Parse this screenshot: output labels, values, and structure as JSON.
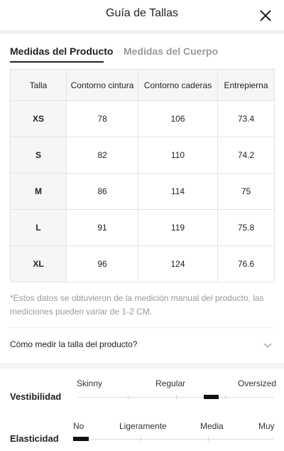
{
  "header": {
    "title": "Guía de Tallas"
  },
  "tabs": [
    "Medidas del Producto",
    "Medidas del Cuerpo"
  ],
  "table": {
    "header": [
      "Talla",
      "Contorno cintura",
      "Contorno caderas",
      "Entrepierna"
    ],
    "rows": [
      [
        "XS",
        "78",
        "106",
        "73.4"
      ],
      [
        "S",
        "82",
        "110",
        "74.2"
      ],
      [
        "M",
        "86",
        "114",
        "75"
      ],
      [
        "L",
        "91",
        "119",
        "75.8"
      ],
      [
        "XL",
        "96",
        "124",
        "76.6"
      ]
    ]
  },
  "note": "*Estos datos se obtuvieron de la medición manual del producto, las mediciones pueden variar de 1-2 CM.",
  "how_to": "Cómo medir la talla del producto?",
  "fit": {
    "label": "Vestibilidad",
    "scale": [
      "Skinny",
      "Regular",
      "Oversized"
    ]
  },
  "elasticity": {
    "label": "Elasticidad",
    "scale": [
      "No",
      "Ligeramente",
      "Media",
      "Muy"
    ]
  }
}
